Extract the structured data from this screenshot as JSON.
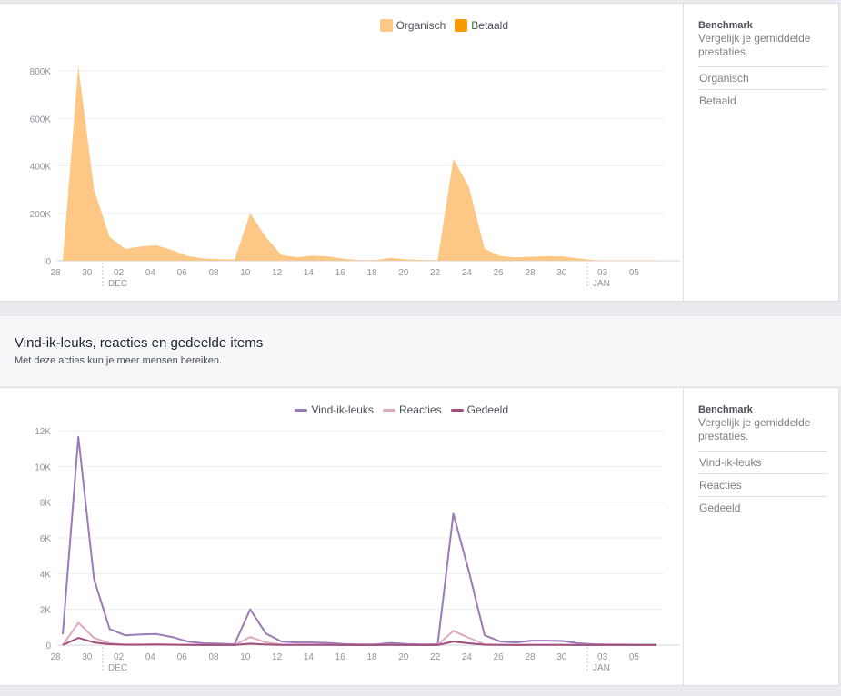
{
  "reach_chart": {
    "legend": [
      {
        "label": "Organisch",
        "color": "#fdc785"
      },
      {
        "label": "Betaald",
        "color": "#f49b05"
      }
    ],
    "benchmark": {
      "title": "Benchmark",
      "description": "Vergelijk je gemiddelde prestaties.",
      "items": [
        "Organisch",
        "Betaald"
      ]
    }
  },
  "engagement_section": {
    "title": "Vind-ik-leuks, reacties en gedeelde items",
    "subtitle": "Met deze acties kun je meer mensen bereiken."
  },
  "engagement_chart": {
    "legend": [
      {
        "label": "Vind-ik-leuks",
        "color": "#9b7bb7"
      },
      {
        "label": "Reacties",
        "color": "#e0a9bf"
      },
      {
        "label": "Gedeeld",
        "color": "#a04f7e"
      }
    ],
    "benchmark": {
      "title": "Benchmark",
      "description": "Vergelijk je gemiddelde prestaties.",
      "items": [
        "Vind-ik-leuks",
        "Reacties",
        "Gedeeld"
      ]
    }
  },
  "chart_data": [
    {
      "type": "area",
      "x_ticks": [
        "28",
        "30",
        "02",
        "04",
        "06",
        "08",
        "10",
        "12",
        "14",
        "16",
        "18",
        "20",
        "22",
        "24",
        "26",
        "28",
        "30",
        "03",
        "05"
      ],
      "month_labels": [
        {
          "label": "DEC",
          "after_tick": "30"
        },
        {
          "label": "JAN",
          "after_tick": "30"
        }
      ],
      "y_ticks": [
        "0",
        "200K",
        "400K",
        "600K",
        "800K"
      ],
      "ylim": [
        0,
        800000
      ],
      "series": [
        {
          "name": "Organisch",
          "color": "#fdc785",
          "values": [
            0,
            820000,
            300000,
            100000,
            50000,
            60000,
            65000,
            45000,
            20000,
            10000,
            6000,
            5000,
            200000,
            100000,
            25000,
            15000,
            22000,
            18000,
            8000,
            3000,
            3000,
            12000,
            6000,
            3000,
            3000,
            430000,
            310000,
            50000,
            20000,
            15000,
            17000,
            20000,
            18000,
            10000,
            3000,
            2000,
            2000,
            2000,
            2000
          ]
        },
        {
          "name": "Betaald",
          "color": "#f49b05",
          "values": [
            0,
            0,
            0,
            0,
            0,
            0,
            0,
            0,
            0,
            0,
            0,
            0,
            0,
            0,
            0,
            0,
            0,
            0,
            0,
            0,
            0,
            0,
            0,
            0,
            0,
            0,
            0,
            0,
            0,
            0,
            0,
            0,
            0,
            0,
            0,
            0,
            0,
            0,
            0
          ]
        }
      ]
    },
    {
      "type": "line",
      "x_ticks": [
        "28",
        "30",
        "02",
        "04",
        "06",
        "08",
        "10",
        "12",
        "14",
        "16",
        "18",
        "20",
        "22",
        "24",
        "26",
        "28",
        "30",
        "03",
        "05"
      ],
      "month_labels": [
        {
          "label": "DEC",
          "after_tick": "30"
        },
        {
          "label": "JAN",
          "after_tick": "30"
        }
      ],
      "y_ticks": [
        "0",
        "2K",
        "4K",
        "6K",
        "8K",
        "10K",
        "12K"
      ],
      "ylim": [
        0,
        12000
      ],
      "series": [
        {
          "name": "Vind-ik-leuks",
          "color": "#9b7bb7",
          "values": [
            600,
            11650,
            3700,
            900,
            550,
            600,
            620,
            450,
            200,
            100,
            80,
            50,
            2000,
            650,
            200,
            150,
            150,
            120,
            60,
            40,
            40,
            120,
            60,
            40,
            50,
            7350,
            4100,
            550,
            200,
            150,
            250,
            250,
            230,
            100,
            50,
            30,
            30,
            20,
            20
          ]
        },
        {
          "name": "Reacties",
          "color": "#e0a9bf",
          "values": [
            0,
            1250,
            400,
            100,
            40,
            40,
            50,
            30,
            20,
            10,
            10,
            5,
            450,
            150,
            30,
            20,
            20,
            20,
            10,
            5,
            5,
            10,
            5,
            5,
            5,
            800,
            400,
            50,
            20,
            15,
            20,
            20,
            15,
            10,
            5,
            5,
            5,
            5,
            5
          ]
        },
        {
          "name": "Gedeeld",
          "color": "#a04f7e",
          "values": [
            0,
            400,
            150,
            50,
            20,
            20,
            30,
            20,
            10,
            5,
            5,
            5,
            80,
            30,
            10,
            10,
            10,
            10,
            5,
            5,
            5,
            10,
            5,
            5,
            5,
            200,
            100,
            20,
            10,
            5,
            10,
            10,
            10,
            5,
            5,
            5,
            5,
            5,
            5
          ]
        }
      ]
    }
  ]
}
